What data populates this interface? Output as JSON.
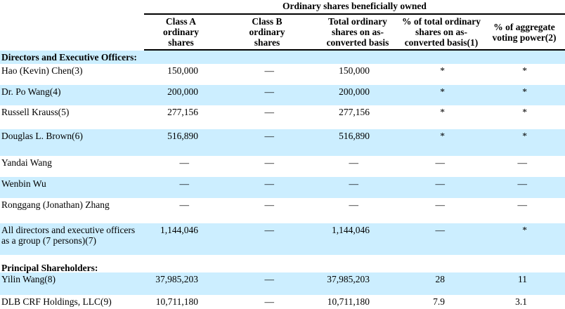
{
  "table": {
    "spanner_header": "Ordinary shares beneficially owned",
    "highlight_color": "#cceeff",
    "column_headers": [
      [
        "Class A",
        "ordinary",
        "shares"
      ],
      [
        "Class B",
        "ordinary",
        "shares"
      ],
      [
        "Total ordinary",
        "shares on as-",
        "converted basis"
      ],
      [
        "% of total ordinary",
        "shares on as-",
        "converted basis(1)"
      ],
      [
        "% of aggregate",
        "voting power(2)"
      ]
    ],
    "rows": [
      {
        "type": "section",
        "label": "Directors and Executive Officers:",
        "cells": [
          "",
          "",
          "",
          "",
          ""
        ]
      },
      {
        "type": "data",
        "label": "Hao (Kevin) Chen(3)",
        "cells": [
          "150,000",
          "—",
          "150,000",
          "*",
          "*"
        ]
      },
      {
        "type": "data",
        "label": "Dr. Po Wang(4)",
        "cells": [
          "200,000",
          "—",
          "200,000",
          "*",
          "*"
        ]
      },
      {
        "type": "data",
        "label": "Russell Krauss(5)",
        "cells": [
          "277,156",
          "—",
          "277,156",
          "*",
          "*"
        ]
      },
      {
        "type": "data",
        "label": "Douglas L. Brown(6)",
        "cells": [
          "516,890",
          "—",
          "516,890",
          "*",
          "*"
        ]
      },
      {
        "type": "data",
        "label": "Yandai Wang",
        "cells": [
          "—",
          "—",
          "—",
          "—",
          "—"
        ]
      },
      {
        "type": "data",
        "label": "Wenbin Wu",
        "cells": [
          "—",
          "—",
          "—",
          "—",
          "—"
        ]
      },
      {
        "type": "data",
        "label": "Ronggang (Jonathan) Zhang",
        "cells": [
          "—",
          "—",
          "—",
          "—",
          "—"
        ]
      },
      {
        "type": "data",
        "label": "All directors and executive officers as a group (7 persons)(7)",
        "cells": [
          "1,144,046",
          "—",
          "1,144,046",
          "—",
          "*"
        ]
      },
      {
        "type": "section",
        "label": "Principal Shareholders:",
        "cells": [
          "",
          "",
          "",
          "",
          ""
        ]
      },
      {
        "type": "data",
        "label": "Yilin Wang(8)",
        "cells": [
          "37,985,203",
          "—",
          "37,985,203",
          "28",
          "11"
        ]
      },
      {
        "type": "data",
        "label": "DLB CRF Holdings, LLC(9)",
        "cells": [
          "10,711,180",
          "—",
          "10,711,180",
          "7.9",
          "3.1"
        ]
      }
    ]
  }
}
